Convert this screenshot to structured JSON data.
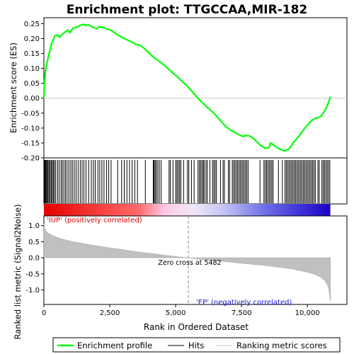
{
  "chart_data": {
    "type": "line",
    "title": "Enrichment plot: TTGCCAA,MIR-182",
    "x_label": "Rank in Ordered Dataset",
    "x_range": [
      0,
      11500
    ],
    "x_ticks": [
      0,
      2500,
      5000,
      7500,
      10000
    ],
    "x_tick_labels": [
      "0",
      "2,500",
      "5,000",
      "7,500",
      "10,000"
    ],
    "n_genes": 10870,
    "es_panel": {
      "y_label": "Enrichment score (ES)",
      "y_range": [
        -0.2,
        0.27
      ],
      "y_ticks": [
        -0.2,
        -0.15,
        -0.1,
        -0.05,
        0.0,
        0.05,
        0.1,
        0.15,
        0.2,
        0.25
      ],
      "y_tick_labels": [
        "-0.20",
        "-0.15",
        "-0.10",
        "-0.05",
        "0.00",
        "0.05",
        "0.10",
        "0.15",
        "0.20",
        "0.25"
      ],
      "series_color": "#00ff00",
      "profile": [
        [
          0,
          0.0
        ],
        [
          20,
          0.05
        ],
        [
          60,
          0.09
        ],
        [
          120,
          0.12
        ],
        [
          200,
          0.15
        ],
        [
          280,
          0.18
        ],
        [
          350,
          0.195
        ],
        [
          420,
          0.21
        ],
        [
          500,
          0.212
        ],
        [
          600,
          0.205
        ],
        [
          700,
          0.215
        ],
        [
          800,
          0.222
        ],
        [
          900,
          0.228
        ],
        [
          1000,
          0.22
        ],
        [
          1100,
          0.235
        ],
        [
          1200,
          0.238
        ],
        [
          1300,
          0.24
        ],
        [
          1400,
          0.245
        ],
        [
          1500,
          0.248
        ],
        [
          1600,
          0.244
        ],
        [
          1700,
          0.247
        ],
        [
          1800,
          0.24
        ],
        [
          1900,
          0.237
        ],
        [
          2000,
          0.233
        ],
        [
          2100,
          0.24
        ],
        [
          2200,
          0.238
        ],
        [
          2300,
          0.236
        ],
        [
          2400,
          0.232
        ],
        [
          2500,
          0.23
        ],
        [
          2650,
          0.222
        ],
        [
          2800,
          0.212
        ],
        [
          2950,
          0.205
        ],
        [
          3100,
          0.198
        ],
        [
          3250,
          0.192
        ],
        [
          3400,
          0.186
        ],
        [
          3500,
          0.18
        ],
        [
          3650,
          0.178
        ],
        [
          3800,
          0.168
        ],
        [
          3950,
          0.155
        ],
        [
          4100,
          0.142
        ],
        [
          4250,
          0.132
        ],
        [
          4400,
          0.122
        ],
        [
          4550,
          0.112
        ],
        [
          4700,
          0.1
        ],
        [
          4850,
          0.088
        ],
        [
          5000,
          0.077
        ],
        [
          5150,
          0.065
        ],
        [
          5300,
          0.052
        ],
        [
          5450,
          0.04
        ],
        [
          5600,
          0.025
        ],
        [
          5750,
          0.01
        ],
        [
          5900,
          -0.005
        ],
        [
          6050,
          -0.018
        ],
        [
          6200,
          -0.03
        ],
        [
          6350,
          -0.042
        ],
        [
          6500,
          -0.055
        ],
        [
          6650,
          -0.07
        ],
        [
          6800,
          -0.085
        ],
        [
          6950,
          -0.098
        ],
        [
          7100,
          -0.108
        ],
        [
          7250,
          -0.115
        ],
        [
          7400,
          -0.122
        ],
        [
          7550,
          -0.128
        ],
        [
          7650,
          -0.125
        ],
        [
          7800,
          -0.126
        ],
        [
          7950,
          -0.135
        ],
        [
          8100,
          -0.148
        ],
        [
          8250,
          -0.16
        ],
        [
          8400,
          -0.168
        ],
        [
          8550,
          -0.165
        ],
        [
          8600,
          -0.15
        ],
        [
          8700,
          -0.155
        ],
        [
          8800,
          -0.162
        ],
        [
          8900,
          -0.168
        ],
        [
          9000,
          -0.172
        ],
        [
          9100,
          -0.176
        ],
        [
          9200,
          -0.175
        ],
        [
          9300,
          -0.17
        ],
        [
          9400,
          -0.158
        ],
        [
          9500,
          -0.145
        ],
        [
          9600,
          -0.135
        ],
        [
          9700,
          -0.125
        ],
        [
          9800,
          -0.112
        ],
        [
          9900,
          -0.1
        ],
        [
          10000,
          -0.09
        ],
        [
          10100,
          -0.08
        ],
        [
          10200,
          -0.072
        ],
        [
          10300,
          -0.068
        ],
        [
          10400,
          -0.065
        ],
        [
          10500,
          -0.062
        ],
        [
          10600,
          -0.05
        ],
        [
          10700,
          -0.035
        ],
        [
          10800,
          -0.015
        ],
        [
          10870,
          0.005
        ]
      ]
    },
    "hits": [
      0,
      15,
      40,
      70,
      100,
      130,
      160,
      200,
      240,
      280,
      320,
      360,
      400,
      450,
      520,
      580,
      650,
      700,
      760,
      820,
      880,
      950,
      1020,
      1080,
      1150,
      1220,
      1300,
      1380,
      1450,
      1520,
      1600,
      1700,
      1800,
      1880,
      1950,
      2050,
      2120,
      2200,
      2280,
      2380,
      2460,
      2550,
      2800,
      2950,
      3050,
      3150,
      3250,
      3350,
      3450,
      3550,
      3850,
      4150,
      4180,
      4220,
      4260,
      4320,
      4380,
      4450,
      4750,
      4800,
      4900,
      5000,
      5050,
      5100,
      5150,
      5200,
      5300,
      5450,
      5500,
      5600,
      5700,
      5850,
      5900,
      5950,
      6000,
      6050,
      6080,
      6150,
      6200,
      6300,
      6400,
      6450,
      6500,
      6550,
      6700,
      6800,
      6850,
      7000,
      7050,
      7150,
      7200,
      7250,
      7300,
      7350,
      7400,
      7450,
      7500,
      7550,
      7600,
      7650,
      7700,
      7750,
      8200,
      8350,
      8400,
      8450,
      8500,
      8550,
      8600,
      8650,
      8700,
      8900,
      9050,
      9150,
      9200,
      9250,
      9300,
      9350,
      9400,
      9450,
      9500,
      9550,
      9600,
      9650,
      9700,
      9750,
      9800,
      9850,
      9900,
      9950,
      10000,
      10050,
      10100,
      10150,
      10200,
      10250,
      10300,
      10400,
      10450,
      10550,
      10600,
      10650,
      10700,
      10750,
      10800,
      10850
    ],
    "metric_panel": {
      "y_label": "Ranked list metric (Signal2Noise)",
      "y_range": [
        -1.45,
        1.3
      ],
      "y_ticks": [
        -1.0,
        -0.5,
        0.0,
        0.5,
        1.0
      ],
      "y_tick_labels": [
        "-1.0",
        "-0.5",
        "0.0",
        "0.5",
        "1.0"
      ],
      "zero_cross_rank": 5482,
      "zero_cross_label": "Zero cross at 5482",
      "pos_label": "'IUP' (positively correlated)",
      "neg_label": "'EP' (negatively correlated)",
      "pos_color": "#ff0000",
      "neg_color": "#0000ff",
      "metric_curve": [
        [
          0,
          1.05
        ],
        [
          30,
          0.9
        ],
        [
          100,
          0.8
        ],
        [
          300,
          0.7
        ],
        [
          600,
          0.6
        ],
        [
          1000,
          0.52
        ],
        [
          1500,
          0.44
        ],
        [
          2000,
          0.37
        ],
        [
          2500,
          0.31
        ],
        [
          3000,
          0.25
        ],
        [
          3500,
          0.19
        ],
        [
          4000,
          0.14
        ],
        [
          4500,
          0.09
        ],
        [
          5000,
          0.04
        ],
        [
          5482,
          0.0
        ],
        [
          6000,
          -0.05
        ],
        [
          6500,
          -0.09
        ],
        [
          7000,
          -0.13
        ],
        [
          7500,
          -0.17
        ],
        [
          8000,
          -0.21
        ],
        [
          8500,
          -0.25
        ],
        [
          9000,
          -0.3
        ],
        [
          9500,
          -0.36
        ],
        [
          10000,
          -0.45
        ],
        [
          10300,
          -0.52
        ],
        [
          10500,
          -0.6
        ],
        [
          10650,
          -0.7
        ],
        [
          10750,
          -0.82
        ],
        [
          10820,
          -1.0
        ],
        [
          10860,
          -1.3
        ],
        [
          10870,
          -1.35
        ]
      ]
    },
    "legend": [
      {
        "label": "Enrichment profile",
        "color": "#00ff00"
      },
      {
        "label": "Hits",
        "color": "#000000"
      },
      {
        "label": "Ranking metric scores",
        "color": "#c8c8c8"
      }
    ]
  }
}
